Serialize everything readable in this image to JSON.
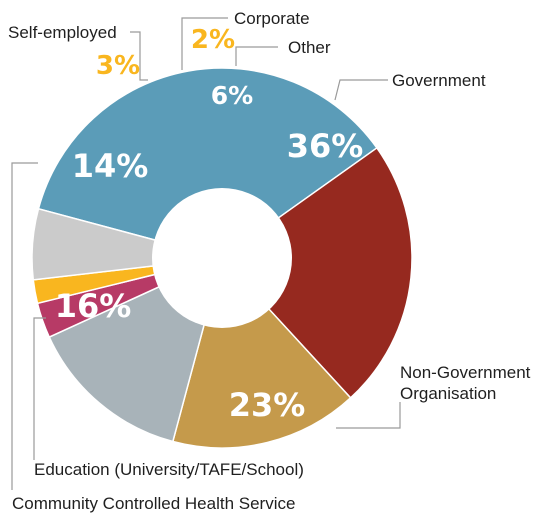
{
  "chart_data": {
    "type": "pie",
    "title": "",
    "slices": [
      {
        "label": "Government",
        "value": 36,
        "value_label": "36%",
        "color": "#5b9cb8"
      },
      {
        "label": "Non-Government Organisation",
        "value": 23,
        "value_label": "23%",
        "color": "#96291f"
      },
      {
        "label": "Education (University/TAFE/School)",
        "value": 16,
        "value_label": "16%",
        "color": "#c59a4b"
      },
      {
        "label": "Community Controlled Health Service",
        "value": 14,
        "value_label": "14%",
        "color": "#a8b3b9"
      },
      {
        "label": "Self-employed",
        "value": 3,
        "value_label": "3%",
        "color": "#b73a66"
      },
      {
        "label": "Corporate",
        "value": 2,
        "value_label": "2%",
        "color": "#f9b61f"
      },
      {
        "label": "Other",
        "value": 6,
        "value_label": "6%",
        "color": "#cbcbcb"
      }
    ],
    "center_hole": true,
    "legend": "none"
  }
}
